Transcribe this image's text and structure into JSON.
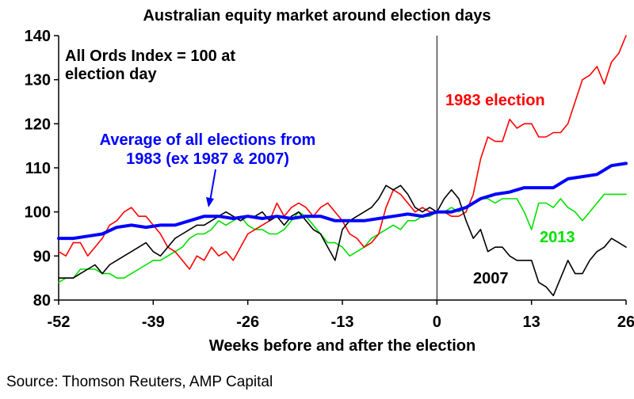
{
  "chart_data": {
    "type": "line",
    "title": "Australian equity market around election days",
    "xlabel": "Weeks before and after the election",
    "ylabel": "",
    "xlim": [
      -52,
      26
    ],
    "ylim": [
      80,
      140
    ],
    "xticks": [
      -52,
      -39,
      -26,
      -13,
      0,
      13,
      26
    ],
    "yticks": [
      80,
      90,
      100,
      110,
      120,
      130,
      140
    ],
    "grid": false,
    "vline_x": 0,
    "annotations": {
      "index_note_line1": "All Ords Index = 100 at",
      "index_note_line2": "election day",
      "avg_label_line1": "Average of all elections from",
      "avg_label_line2": "1983 (ex 1987 & 2007)"
    },
    "series": [
      {
        "name": "1983 election",
        "color": "#ff0000",
        "x": [
          -52,
          -51,
          -50,
          -49,
          -48,
          -47,
          -46,
          -45,
          -44,
          -43,
          -42,
          -41,
          -40,
          -39,
          -38,
          -37,
          -36,
          -35,
          -34,
          -33,
          -32,
          -31,
          -30,
          -29,
          -28,
          -27,
          -26,
          -25,
          -24,
          -23,
          -22,
          -21,
          -20,
          -19,
          -18,
          -17,
          -16,
          -15,
          -14,
          -13,
          -12,
          -11,
          -10,
          -9,
          -8,
          -7,
          -6,
          -5,
          -4,
          -3,
          -2,
          -1,
          0,
          1,
          2,
          3,
          4,
          5,
          6,
          7,
          8,
          9,
          10,
          11,
          12,
          13,
          14,
          15,
          16,
          17,
          18,
          19,
          20,
          21,
          22,
          23,
          24,
          25,
          26
        ],
        "y": [
          91,
          90,
          93,
          93,
          90,
          92,
          94,
          97,
          98,
          100,
          101,
          99,
          99,
          97,
          95,
          92,
          91,
          89,
          87,
          90,
          89,
          92,
          90,
          91,
          89,
          92,
          95,
          96,
          97,
          98,
          102,
          99,
          101,
          102,
          101,
          99,
          101,
          102,
          100,
          98,
          95,
          94,
          92,
          93,
          95,
          101,
          105,
          104,
          102,
          100,
          101,
          100,
          100,
          100,
          99,
          99,
          100,
          104,
          112,
          117,
          116,
          116,
          121,
          119,
          120,
          120,
          117,
          117,
          118,
          118,
          120,
          125,
          130,
          131,
          133,
          129,
          134,
          136,
          140
        ]
      },
      {
        "name": "Average of all elections from 1983 (ex 1987 & 2007)",
        "color": "#0000ff",
        "x": [
          -52,
          -50,
          -48,
          -46,
          -44,
          -42,
          -40,
          -38,
          -36,
          -34,
          -32,
          -30,
          -28,
          -26,
          -24,
          -22,
          -20,
          -18,
          -16,
          -14,
          -12,
          -10,
          -8,
          -6,
          -4,
          -2,
          0,
          2,
          4,
          6,
          8,
          10,
          12,
          14,
          16,
          18,
          20,
          22,
          24,
          26
        ],
        "y": [
          94,
          94,
          94.5,
          95,
          96.5,
          97,
          96.5,
          97,
          97,
          98,
          99,
          99,
          98.5,
          99,
          98.5,
          99,
          98.5,
          99,
          99,
          98,
          98,
          98,
          98.5,
          99,
          99.5,
          99,
          100,
          100,
          101,
          103,
          104,
          104.5,
          105.5,
          105.5,
          105.5,
          107.5,
          108,
          108.5,
          110.5,
          111
        ]
      },
      {
        "name": "2013",
        "color": "#00e000",
        "x": [
          -52,
          -51,
          -50,
          -49,
          -48,
          -47,
          -46,
          -45,
          -44,
          -43,
          -42,
          -41,
          -40,
          -39,
          -38,
          -37,
          -36,
          -35,
          -34,
          -33,
          -32,
          -31,
          -30,
          -29,
          -28,
          -27,
          -26,
          -25,
          -24,
          -23,
          -22,
          -21,
          -20,
          -19,
          -18,
          -17,
          -16,
          -15,
          -14,
          -13,
          -12,
          -11,
          -10,
          -9,
          -8,
          -7,
          -6,
          -5,
          -4,
          -3,
          -2,
          -1,
          0,
          1,
          2,
          3,
          4,
          5,
          6,
          7,
          8,
          9,
          10,
          11,
          12,
          13,
          14,
          15,
          16,
          17,
          18,
          19,
          20,
          21,
          22,
          23,
          24,
          25,
          26
        ],
        "y": [
          84,
          85,
          85,
          87,
          87,
          87,
          86,
          86,
          85,
          85,
          86,
          87,
          88,
          89,
          89,
          90,
          91,
          92,
          94,
          95,
          95,
          96,
          98,
          97,
          98,
          99,
          97,
          96,
          96,
          95,
          95,
          96,
          98,
          100,
          99,
          97,
          95,
          93,
          93,
          92,
          90,
          91,
          92,
          94,
          95,
          96,
          97,
          96,
          98,
          98,
          99,
          99,
          100,
          100,
          101,
          100,
          101,
          102,
          103,
          103,
          102,
          103,
          103,
          103,
          100,
          96,
          102,
          102,
          101,
          103,
          101,
          100,
          98,
          100,
          102,
          104,
          104,
          104,
          104
        ]
      },
      {
        "name": "2007",
        "color": "#000000",
        "x": [
          -52,
          -51,
          -50,
          -49,
          -48,
          -47,
          -46,
          -45,
          -44,
          -43,
          -42,
          -41,
          -40,
          -39,
          -38,
          -37,
          -36,
          -35,
          -34,
          -33,
          -32,
          -31,
          -30,
          -29,
          -28,
          -27,
          -26,
          -25,
          -24,
          -23,
          -22,
          -21,
          -20,
          -19,
          -18,
          -17,
          -16,
          -15,
          -14,
          -13,
          -12,
          -11,
          -10,
          -9,
          -8,
          -7,
          -6,
          -5,
          -4,
          -3,
          -2,
          -1,
          0,
          1,
          2,
          3,
          4,
          5,
          6,
          7,
          8,
          9,
          10,
          11,
          12,
          13,
          14,
          15,
          16,
          17,
          18,
          19,
          20,
          21,
          22,
          23,
          24,
          25,
          26
        ],
        "y": [
          85,
          85,
          85,
          86,
          87,
          88,
          86,
          88,
          89,
          90,
          91,
          92,
          93,
          91,
          90,
          92,
          94,
          95,
          96,
          97,
          97,
          98,
          99,
          100,
          99,
          98,
          99,
          99,
          100,
          98,
          99,
          97,
          99,
          100,
          98,
          96,
          95,
          92,
          89,
          96,
          98,
          99,
          100,
          101,
          103,
          106,
          105,
          106,
          104,
          101,
          100,
          101,
          100,
          103,
          105,
          103,
          98,
          94,
          96,
          91,
          92,
          92,
          90,
          89,
          89,
          89,
          84,
          83,
          81,
          85,
          89,
          86,
          86,
          89,
          91,
          92,
          94,
          93,
          92
        ]
      }
    ]
  },
  "source_text": "Source: Thomson  Reuters, AMP Capital"
}
